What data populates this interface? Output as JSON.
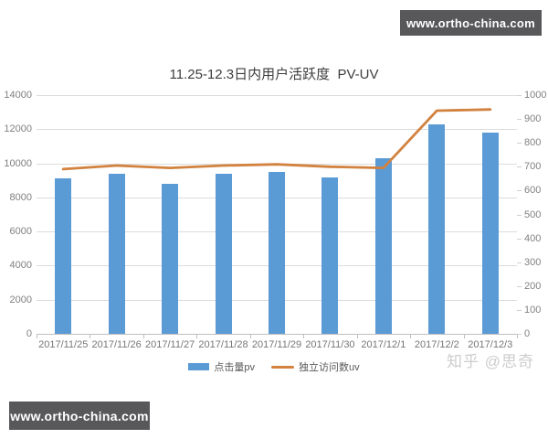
{
  "watermarks": {
    "top_badge": "www.ortho-china.com",
    "bottom_badge": "www.ortho-china.com",
    "zhihu": "知乎 @思奇",
    "badge_bg": "#58585a"
  },
  "chart_data": {
    "type": "combo",
    "title": "11.25-12.3日内用户活跃度  PV-UV",
    "categories": [
      "2017/11/25",
      "2017/11/26",
      "2017/11/27",
      "2017/11/28",
      "2017/11/29",
      "2017/11/30",
      "2017/12/1",
      "2017/12/2",
      "2017/12/3"
    ],
    "series": [
      {
        "name": "点击量pv",
        "type": "bar",
        "axis": "left",
        "color": "#5B9BD5",
        "values": [
          9100,
          9400,
          8800,
          9400,
          9500,
          9200,
          10300,
          12300,
          11800
        ]
      },
      {
        "name": "独立访问数uv",
        "type": "line",
        "axis": "right",
        "color": "#D2823F",
        "values": [
          690,
          705,
          695,
          705,
          710,
          700,
          695,
          935,
          940
        ]
      }
    ],
    "left_axis": {
      "min": 0,
      "max": 14000,
      "ticks": [
        "14000",
        "12000",
        "10000",
        "8000",
        "6000",
        "4000",
        "2000",
        "0"
      ]
    },
    "right_axis": {
      "min": 0,
      "max": 1000,
      "ticks": [
        "1000",
        "900",
        "800",
        "700",
        "600",
        "500",
        "400",
        "300",
        "200",
        "100",
        "0"
      ]
    },
    "grid": true,
    "legend_position": "bottom"
  }
}
